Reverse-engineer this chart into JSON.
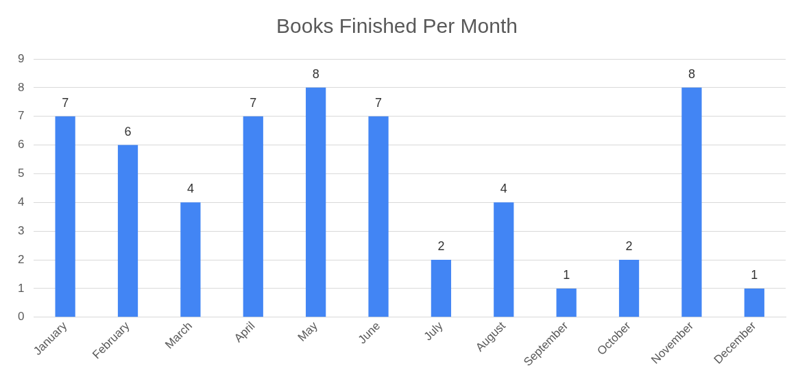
{
  "chart_data": {
    "type": "bar",
    "title": "Books Finished Per Month",
    "categories": [
      "January",
      "February",
      "March",
      "April",
      "May",
      "June",
      "July",
      "August",
      "September",
      "October",
      "November",
      "December"
    ],
    "values": [
      7,
      6,
      4,
      7,
      8,
      7,
      2,
      4,
      1,
      2,
      8,
      1
    ],
    "color": "#4285f4",
    "ylim": [
      0,
      9
    ],
    "yticks": [
      0,
      1,
      2,
      3,
      4,
      5,
      6,
      7,
      8,
      9
    ],
    "grid": "y",
    "data_labels": true,
    "legend": false
  }
}
